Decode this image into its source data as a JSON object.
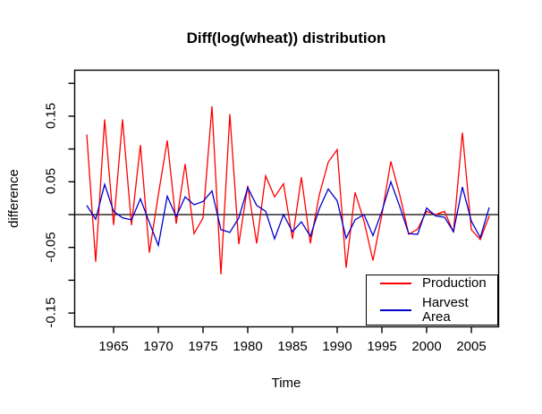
{
  "chart_data": {
    "type": "line",
    "title": "Diff(log(wheat)) distribution",
    "xlabel": "Time",
    "ylabel": "difference",
    "xlim": [
      1960.6,
      2008.0
    ],
    "ylim": [
      -0.17,
      0.22
    ],
    "grid": false,
    "hline": 0,
    "x": [
      1962,
      1963,
      1964,
      1965,
      1966,
      1967,
      1968,
      1969,
      1970,
      1971,
      1972,
      1973,
      1974,
      1975,
      1976,
      1977,
      1978,
      1979,
      1980,
      1981,
      1982,
      1983,
      1984,
      1985,
      1986,
      1987,
      1988,
      1989,
      1990,
      1991,
      1992,
      1993,
      1994,
      1995,
      1996,
      1997,
      1998,
      1999,
      2000,
      2001,
      2002,
      2003,
      2004,
      2005,
      2006,
      2007
    ],
    "series": [
      {
        "name": "Production",
        "color": "#ff0000",
        "values": [
          0.122,
          -0.072,
          0.145,
          -0.016,
          0.145,
          -0.016,
          0.106,
          -0.058,
          0.03,
          0.113,
          -0.014,
          0.077,
          -0.029,
          -0.005,
          0.165,
          -0.091,
          0.153,
          -0.045,
          0.044,
          -0.044,
          0.059,
          0.027,
          0.047,
          -0.037,
          0.057,
          -0.044,
          0.03,
          0.08,
          0.099,
          -0.081,
          0.034,
          -0.01,
          -0.07,
          0.0,
          0.081,
          0.03,
          -0.03,
          -0.022,
          0.005,
          0.0,
          0.005,
          -0.027,
          0.125,
          -0.023,
          -0.038,
          -0.002
        ]
      },
      {
        "name": "Harvest Area",
        "color": "#0000cd",
        "values": [
          0.014,
          -0.007,
          0.046,
          0.005,
          -0.005,
          -0.008,
          0.024,
          -0.012,
          -0.047,
          0.028,
          -0.003,
          0.027,
          0.015,
          0.02,
          0.036,
          -0.023,
          -0.027,
          -0.005,
          0.041,
          0.014,
          0.005,
          -0.037,
          0.0,
          -0.026,
          -0.011,
          -0.033,
          0.009,
          0.039,
          0.021,
          -0.036,
          -0.008,
          0.0,
          -0.032,
          0.005,
          0.05,
          0.012,
          -0.029,
          -0.03,
          0.01,
          -0.002,
          -0.004,
          -0.026,
          0.042,
          -0.01,
          -0.035,
          0.011
        ]
      }
    ],
    "x_axis": {
      "ticks": [
        {
          "value": 1965,
          "text": "1965"
        },
        {
          "value": 1970,
          "text": "1970"
        },
        {
          "value": 1975,
          "text": "1975"
        },
        {
          "value": 1980,
          "text": "1980"
        },
        {
          "value": 1985,
          "text": "1985"
        },
        {
          "value": 1990,
          "text": "1990"
        },
        {
          "value": 1995,
          "text": "1995"
        },
        {
          "value": 2000,
          "text": "2000"
        },
        {
          "value": 2005,
          "text": "2005"
        }
      ]
    },
    "y_axis": {
      "ticks": [
        0.2,
        0.15,
        0.1,
        0.05,
        0.0,
        -0.05,
        -0.1,
        -0.15
      ],
      "labeled": [
        {
          "value": 0.15,
          "text": "0.15"
        },
        {
          "value": 0.05,
          "text": "0.05"
        },
        {
          "value": -0.05,
          "text": "-0.05"
        },
        {
          "value": -0.15,
          "text": "-0.15"
        }
      ]
    },
    "legend": {
      "position": "bottom-right"
    }
  }
}
